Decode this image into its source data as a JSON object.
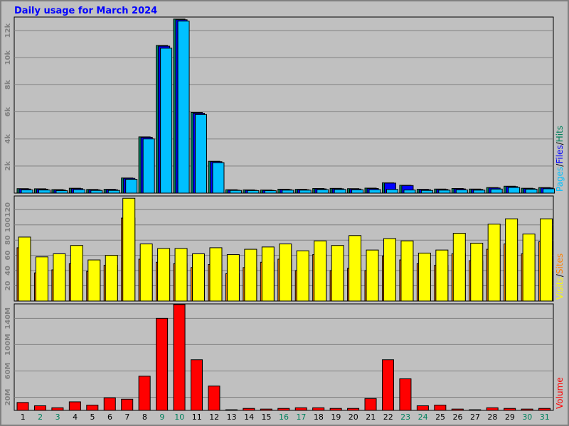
{
  "title": "Daily usage for March 2024",
  "chart_data": [
    {
      "type": "bar",
      "legend_separator": "/",
      "ylim": [
        0,
        13000
      ],
      "yticks": [
        {
          "value": 2000,
          "label": "2k"
        },
        {
          "value": 4000,
          "label": "4k"
        },
        {
          "value": 6000,
          "label": "6k"
        },
        {
          "value": 8000,
          "label": "8k"
        },
        {
          "value": 10000,
          "label": "10k"
        },
        {
          "value": 12000,
          "label": "12k"
        }
      ],
      "grid": true,
      "series": [
        {
          "name": "Pages",
          "color": "#00c0ff",
          "values": [
            240,
            230,
            180,
            260,
            200,
            200,
            1020,
            4000,
            10700,
            12700,
            5800,
            2250,
            200,
            190,
            180,
            220,
            220,
            260,
            270,
            250,
            260,
            270,
            230,
            200,
            220,
            240,
            220,
            300,
            420,
            290,
            320
          ]
        },
        {
          "name": "Files",
          "color": "#0000ff",
          "values": [
            300,
            290,
            230,
            330,
            240,
            250,
            1090,
            4120,
            10850,
            12800,
            5900,
            2320,
            220,
            210,
            200,
            260,
            250,
            310,
            320,
            300,
            340,
            740,
            560,
            250,
            270,
            310,
            270,
            380,
            480,
            330,
            380
          ]
        },
        {
          "name": "Hits",
          "color": "#00805c",
          "values": [
            330,
            320,
            260,
            360,
            270,
            280,
            1120,
            4150,
            10900,
            12850,
            5950,
            2350,
            250,
            240,
            230,
            290,
            280,
            340,
            350,
            330,
            370,
            760,
            580,
            280,
            300,
            340,
            300,
            410,
            510,
            360,
            410
          ]
        }
      ]
    },
    {
      "type": "bar",
      "legend_separator": "/",
      "ylim": [
        0,
        138
      ],
      "yticks": [
        20,
        40,
        60,
        80,
        100,
        120
      ],
      "grid": true,
      "series": [
        {
          "name": "Visits",
          "color": "#ffff00",
          "values": [
            84,
            58,
            62,
            73,
            54,
            60,
            135,
            75,
            69,
            69,
            62,
            70,
            61,
            68,
            71,
            75,
            66,
            79,
            73,
            86,
            67,
            82,
            79,
            63,
            67,
            89,
            76,
            101,
            108,
            88,
            108
          ]
        },
        {
          "name": "Sites",
          "color": "#ff8000",
          "values": [
            70,
            37,
            41,
            49,
            39,
            47,
            109,
            55,
            51,
            49,
            44,
            48,
            36,
            44,
            51,
            55,
            40,
            61,
            40,
            43,
            40,
            59,
            54,
            49,
            47,
            62,
            53,
            68,
            75,
            62,
            78
          ]
        }
      ]
    },
    {
      "type": "bar",
      "ylim": [
        0,
        162
      ],
      "yticks": [
        {
          "value": 20,
          "label": "20M"
        },
        {
          "value": 60,
          "label": "60M"
        },
        {
          "value": 100,
          "label": "100M"
        },
        {
          "value": 140,
          "label": "140M"
        }
      ],
      "grid": true,
      "categories": [
        "1",
        "2",
        "3",
        "4",
        "5",
        "6",
        "7",
        "8",
        "9",
        "10",
        "11",
        "12",
        "13",
        "14",
        "15",
        "16",
        "17",
        "18",
        "19",
        "20",
        "21",
        "22",
        "23",
        "24",
        "25",
        "26",
        "27",
        "28",
        "29",
        "30",
        "31"
      ],
      "category_colors": [
        "#000000",
        "#00805c",
        "#00805c",
        "#000000",
        "#000000",
        "#000000",
        "#000000",
        "#000000",
        "#00805c",
        "#00805c",
        "#000000",
        "#000000",
        "#000000",
        "#000000",
        "#000000",
        "#00805c",
        "#00805c",
        "#000000",
        "#000000",
        "#000000",
        "#000000",
        "#000000",
        "#00805c",
        "#00805c",
        "#000000",
        "#000000",
        "#000000",
        "#000000",
        "#000000",
        "#00805c",
        "#00805c"
      ],
      "series": [
        {
          "name": "Volume",
          "color": "#ff0000",
          "values": [
            12,
            7,
            4,
            13,
            8,
            19,
            17,
            52,
            140,
            161,
            77,
            37,
            1,
            3,
            2,
            3,
            4,
            4,
            3,
            3,
            18,
            77,
            48,
            7,
            8,
            2,
            1,
            4,
            3,
            2,
            3
          ]
        }
      ]
    }
  ]
}
